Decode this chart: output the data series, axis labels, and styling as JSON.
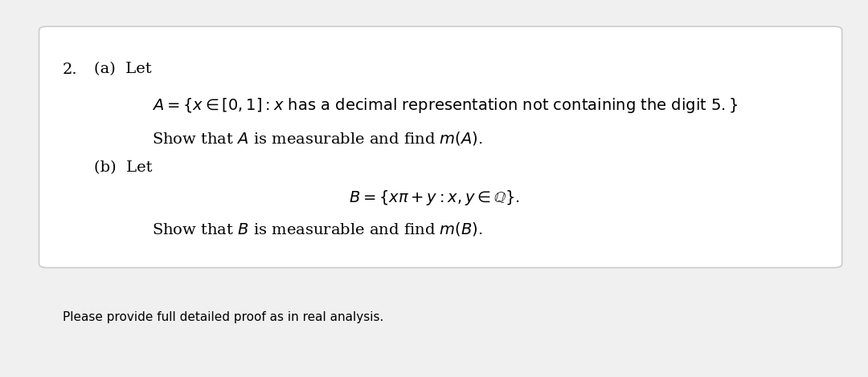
{
  "background_color": "#f0f0f0",
  "box_color": "#ffffff",
  "box_border_color": "#cccccc",
  "text_color": "#000000",
  "fig_width": 10.8,
  "fig_height": 4.7,
  "number_label": "2.",
  "part_a_label": "(a)  Let",
  "part_a_eq": "$A = \\{x \\in [0,1] : x\\text{ has a decimal representation not containing the digit }5.\\}$",
  "part_a_show": "Show that $A$ is measurable and find $m(A)$.",
  "part_b_label": "(b)  Let",
  "part_b_eq": "$B = \\{x\\pi + y : x, y \\in \\mathbb{Q}\\}.$",
  "part_b_show": "Show that $B$ is measurable and find $m(B)$.",
  "footer_text": "Please provide full detailed proof as in real analysis.",
  "footer_fontsize": 11,
  "main_fontsize": 14,
  "label_fontsize": 14
}
